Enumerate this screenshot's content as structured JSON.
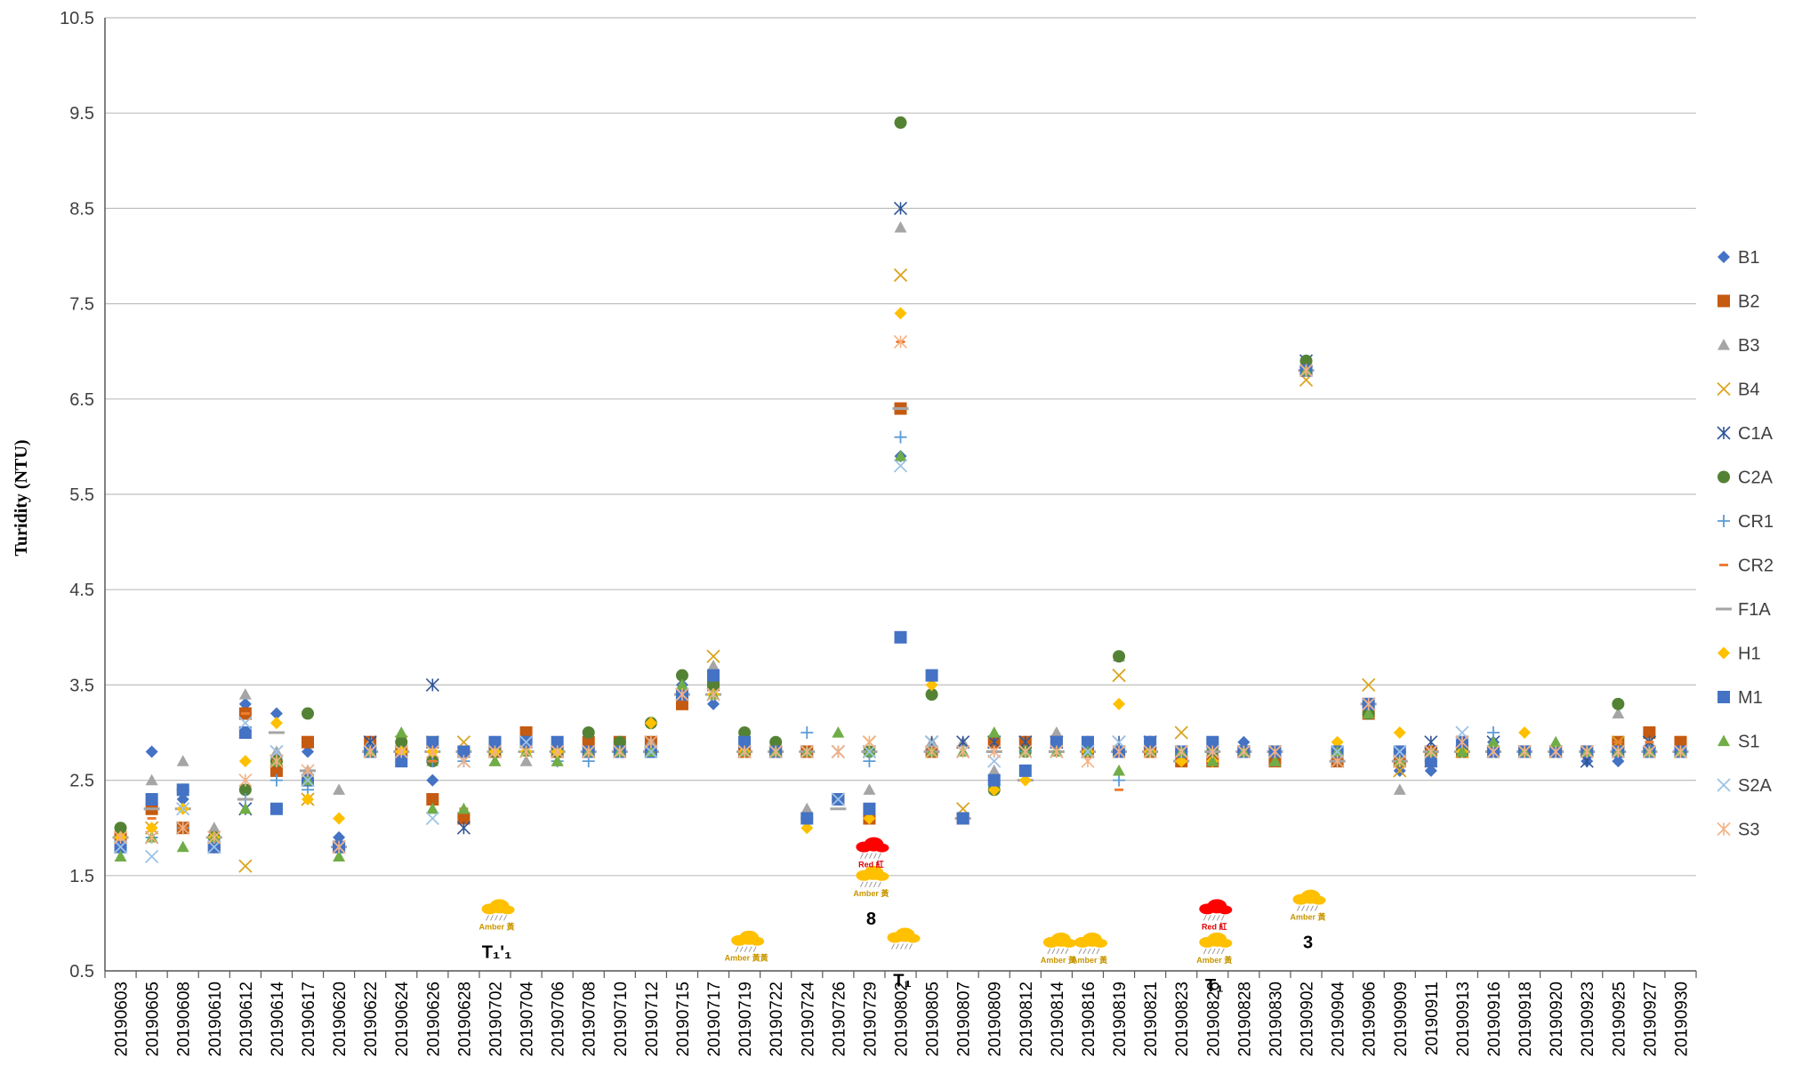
{
  "chart_data": {
    "type": "scatter",
    "title": "",
    "ylabel": "Turidity (NTU)",
    "xlabel": "",
    "ylim": [
      0.5,
      10.5
    ],
    "yticks": [
      "10.5",
      "9.5",
      "8.5",
      "7.5",
      "6.5",
      "5.5",
      "4.5",
      "3.5",
      "2.5",
      "1.5",
      "0.5"
    ],
    "grid": "horizontal",
    "legend_position": "right",
    "categories": [
      "20190603",
      "20190605",
      "20190608",
      "20190610",
      "20190612",
      "20190614",
      "20190617",
      "20190620",
      "20190622",
      "20190624",
      "20190626",
      "20190628",
      "20190702",
      "20190704",
      "20190706",
      "20190708",
      "20190710",
      "20190712",
      "20190715",
      "20190717",
      "20190719",
      "20190722",
      "20190724",
      "20190726",
      "20190729",
      "20190802",
      "20190805",
      "20190807",
      "20190809",
      "20190812",
      "20190814",
      "20190816",
      "20190819",
      "20190821",
      "20190823",
      "20190826",
      "20190828",
      "20190830",
      "20190902",
      "20190904",
      "20190906",
      "20190909",
      "20190911",
      "20190913",
      "20190916",
      "20190918",
      "20190920",
      "20190923",
      "20190925",
      "20190927",
      "20190930"
    ],
    "series": [
      {
        "name": "B1",
        "marker": "diamond",
        "color": "#4472C4",
        "values": [
          1.8,
          2.8,
          2.3,
          1.8,
          3.3,
          3.2,
          2.8,
          1.9,
          2.9,
          2.9,
          2.5,
          2.8,
          2.9,
          2.9,
          2.8,
          2.8,
          2.8,
          2.9,
          3.5,
          3.3,
          2.9,
          2.8,
          2.8,
          2.3,
          2.2,
          5.9,
          2.8,
          2.1,
          2.5,
          2.9,
          2.9,
          2.9,
          2.8,
          2.9,
          2.7,
          2.8,
          2.9,
          2.8,
          6.8,
          2.7,
          3.3,
          2.6,
          2.6,
          2.9,
          2.9,
          2.8,
          2.8,
          2.7,
          2.7,
          2.8,
          2.8
        ]
      },
      {
        "name": "B2",
        "marker": "square",
        "color": "#C55A11",
        "values": [
          1.9,
          2.2,
          2.0,
          1.8,
          3.2,
          2.6,
          2.9,
          1.8,
          2.9,
          2.8,
          2.3,
          2.1,
          2.8,
          3.0,
          2.8,
          2.9,
          2.9,
          2.9,
          3.3,
          3.5,
          2.8,
          2.8,
          2.8,
          2.3,
          2.1,
          6.4,
          2.8,
          2.1,
          2.9,
          2.9,
          2.9,
          2.8,
          2.8,
          2.8,
          2.7,
          2.7,
          2.8,
          2.7,
          6.8,
          2.7,
          3.2,
          2.7,
          2.8,
          2.8,
          2.8,
          2.8,
          2.8,
          2.8,
          2.9,
          3.0,
          2.9
        ]
      },
      {
        "name": "B3",
        "marker": "triangle",
        "color": "#A5A5A5",
        "values": [
          1.9,
          2.5,
          2.7,
          2.0,
          3.4,
          2.8,
          2.6,
          2.4,
          2.9,
          2.9,
          2.7,
          2.8,
          2.7,
          2.7,
          2.7,
          2.8,
          2.8,
          2.9,
          3.5,
          3.7,
          2.8,
          2.9,
          2.2,
          2.3,
          2.4,
          8.3,
          2.9,
          2.9,
          2.6,
          2.8,
          3.0,
          2.8,
          3.8,
          2.9,
          2.8,
          2.8,
          2.8,
          2.7,
          6.8,
          2.8,
          3.3,
          2.4,
          2.8,
          2.9,
          2.8,
          2.8,
          2.8,
          2.8,
          3.2,
          2.9,
          2.8
        ]
      },
      {
        "name": "B4",
        "marker": "x",
        "color": "#DAA520",
        "values": [
          1.9,
          2.0,
          2.0,
          1.9,
          1.6,
          2.7,
          2.3,
          1.8,
          2.8,
          2.9,
          2.9,
          2.9,
          2.8,
          2.9,
          2.8,
          2.8,
          2.8,
          2.8,
          3.4,
          3.8,
          2.8,
          2.8,
          2.8,
          2.3,
          2.9,
          7.8,
          2.9,
          2.2,
          2.9,
          2.9,
          2.9,
          2.8,
          3.6,
          2.9,
          3.0,
          2.8,
          2.8,
          2.8,
          6.7,
          2.7,
          3.5,
          2.6,
          2.7,
          2.8,
          2.8,
          2.8,
          2.8,
          2.8,
          2.9,
          2.9,
          2.8
        ]
      },
      {
        "name": "C1A",
        "marker": "asterisk",
        "color": "#2F5597",
        "values": [
          1.8,
          1.9,
          2.0,
          1.8,
          2.2,
          2.7,
          2.5,
          1.8,
          2.9,
          2.8,
          3.5,
          2.0,
          2.8,
          2.9,
          2.8,
          2.8,
          2.8,
          2.9,
          3.4,
          3.4,
          2.8,
          2.8,
          2.8,
          2.8,
          2.8,
          8.5,
          2.9,
          2.9,
          2.9,
          2.9,
          2.9,
          2.8,
          2.9,
          2.9,
          2.8,
          2.8,
          2.8,
          2.8,
          6.9,
          2.7,
          3.3,
          2.7,
          2.9,
          2.9,
          2.9,
          2.8,
          2.8,
          2.7,
          2.8,
          2.9,
          2.8
        ]
      },
      {
        "name": "C2A",
        "marker": "circle",
        "color": "#548235",
        "values": [
          2.0,
          2.3,
          2.4,
          1.9,
          2.4,
          2.7,
          3.2,
          1.8,
          2.8,
          2.9,
          2.7,
          2.8,
          2.8,
          2.9,
          2.8,
          3.0,
          2.9,
          3.1,
          3.6,
          3.5,
          3.0,
          2.9,
          2.1,
          2.3,
          2.8,
          9.4,
          3.4,
          2.1,
          2.4,
          2.8,
          2.9,
          2.9,
          3.8,
          2.9,
          2.8,
          2.8,
          2.8,
          2.8,
          6.9,
          2.8,
          3.2,
          2.8,
          2.7,
          2.8,
          2.8,
          2.8,
          2.8,
          2.8,
          3.3,
          2.8,
          2.8
        ]
      },
      {
        "name": "CR1",
        "marker": "plus",
        "color": "#5B9BD5",
        "values": [
          1.8,
          1.9,
          2.0,
          1.8,
          2.3,
          2.5,
          2.4,
          1.8,
          2.8,
          2.8,
          2.7,
          2.7,
          2.8,
          2.8,
          2.7,
          2.7,
          2.8,
          2.8,
          3.4,
          3.4,
          2.8,
          2.8,
          3.0,
          2.3,
          2.7,
          6.1,
          2.8,
          2.1,
          2.8,
          2.8,
          2.8,
          2.8,
          2.5,
          2.8,
          2.8,
          2.8,
          2.8,
          2.8,
          6.8,
          2.7,
          3.3,
          2.7,
          2.7,
          2.8,
          3.0,
          2.8,
          2.8,
          2.8,
          2.8,
          2.8,
          2.8
        ]
      },
      {
        "name": "CR2",
        "marker": "dash",
        "color": "#ED7D31",
        "values": [
          1.9,
          2.1,
          2.0,
          1.9,
          3.2,
          2.7,
          2.6,
          1.8,
          2.8,
          2.8,
          2.7,
          2.2,
          2.8,
          2.8,
          2.8,
          2.8,
          2.8,
          2.8,
          3.4,
          3.4,
          2.8,
          2.8,
          2.8,
          2.3,
          2.8,
          7.1,
          2.8,
          2.1,
          2.8,
          2.5,
          2.8,
          2.8,
          2.4,
          2.8,
          2.8,
          2.8,
          2.8,
          2.8,
          6.8,
          2.7,
          3.3,
          2.7,
          2.8,
          2.8,
          2.8,
          2.8,
          2.8,
          2.8,
          2.9,
          2.9,
          2.8
        ]
      },
      {
        "name": "F1A",
        "marker": "longdash",
        "color": "#A5A5A5",
        "values": [
          1.9,
          2.2,
          2.2,
          1.9,
          2.3,
          3.0,
          2.6,
          1.8,
          2.8,
          2.8,
          2.8,
          2.8,
          2.8,
          2.8,
          2.8,
          2.8,
          2.8,
          2.8,
          3.4,
          3.4,
          2.8,
          2.8,
          2.8,
          2.2,
          2.8,
          6.4,
          2.8,
          2.1,
          2.8,
          2.5,
          2.8,
          2.8,
          2.8,
          2.8,
          2.7,
          2.8,
          2.8,
          2.8,
          6.8,
          2.7,
          3.3,
          2.7,
          2.8,
          2.8,
          2.8,
          2.8,
          2.8,
          2.8,
          2.8,
          2.8,
          2.8
        ]
      },
      {
        "name": "H1",
        "marker": "diamond",
        "color": "#FFC000",
        "values": [
          1.9,
          2.0,
          2.2,
          1.9,
          2.7,
          3.1,
          2.3,
          2.1,
          2.8,
          2.8,
          2.8,
          2.8,
          2.8,
          2.8,
          2.8,
          2.8,
          2.8,
          3.1,
          3.4,
          3.4,
          2.8,
          2.8,
          2.0,
          2.3,
          2.1,
          7.4,
          3.5,
          2.1,
          2.4,
          2.5,
          2.9,
          2.8,
          3.3,
          2.8,
          2.7,
          2.7,
          2.8,
          2.8,
          6.8,
          2.9,
          3.3,
          3.0,
          2.7,
          2.8,
          2.8,
          3.0,
          2.8,
          2.8,
          2.8,
          2.8,
          2.8
        ]
      },
      {
        "name": "M1",
        "marker": "square",
        "color": "#4472C4",
        "values": [
          1.8,
          2.3,
          2.4,
          1.8,
          3.0,
          2.2,
          2.5,
          1.8,
          2.8,
          2.7,
          2.9,
          2.8,
          2.9,
          2.9,
          2.9,
          2.8,
          2.8,
          2.8,
          3.4,
          3.6,
          2.9,
          2.8,
          2.1,
          2.3,
          2.2,
          4.0,
          3.6,
          2.1,
          2.5,
          2.6,
          2.9,
          2.9,
          2.8,
          2.9,
          2.8,
          2.9,
          2.8,
          2.8,
          6.8,
          2.8,
          3.3,
          2.8,
          2.7,
          2.9,
          2.8,
          2.8,
          2.8,
          2.8,
          2.8,
          2.8,
          2.8
        ]
      },
      {
        "name": "S1",
        "marker": "triangle",
        "color": "#70AD47",
        "values": [
          1.7,
          1.9,
          1.8,
          1.9,
          2.2,
          2.7,
          2.5,
          1.7,
          2.8,
          3.0,
          2.2,
          2.2,
          2.7,
          2.8,
          2.7,
          2.8,
          2.8,
          2.8,
          3.5,
          3.4,
          2.8,
          2.8,
          2.8,
          3.0,
          2.8,
          5.9,
          2.8,
          2.8,
          3.0,
          2.8,
          2.8,
          2.8,
          2.6,
          2.8,
          2.8,
          2.7,
          2.8,
          2.7,
          6.8,
          2.8,
          3.2,
          2.7,
          2.8,
          2.8,
          2.9,
          2.8,
          2.9,
          2.8,
          2.8,
          2.8,
          2.8
        ]
      },
      {
        "name": "S2A",
        "marker": "x",
        "color": "#9DC3E6",
        "values": [
          1.8,
          1.7,
          2.2,
          1.8,
          3.1,
          2.8,
          2.5,
          1.8,
          2.8,
          2.8,
          2.1,
          2.7,
          2.8,
          2.9,
          2.8,
          2.8,
          2.8,
          2.8,
          3.4,
          3.4,
          2.8,
          2.8,
          2.8,
          2.3,
          2.8,
          5.8,
          2.9,
          2.8,
          2.7,
          2.8,
          2.8,
          2.8,
          2.9,
          2.8,
          2.8,
          2.8,
          2.8,
          2.8,
          6.8,
          2.8,
          3.3,
          2.8,
          2.8,
          3.0,
          2.8,
          2.8,
          2.8,
          2.8,
          2.8,
          2.8,
          2.8
        ]
      },
      {
        "name": "S3",
        "marker": "asterisk",
        "color": "#F4B183",
        "values": [
          1.9,
          1.9,
          2.0,
          1.9,
          2.5,
          2.7,
          2.6,
          1.8,
          2.8,
          2.8,
          2.8,
          2.7,
          2.8,
          2.8,
          2.8,
          2.8,
          2.8,
          2.9,
          3.4,
          3.4,
          2.8,
          2.8,
          2.8,
          2.8,
          2.9,
          7.1,
          2.8,
          2.8,
          2.8,
          2.8,
          2.8,
          2.7,
          2.8,
          2.8,
          2.8,
          2.8,
          2.8,
          2.8,
          6.8,
          2.7,
          3.3,
          2.7,
          2.8,
          2.9,
          2.8,
          2.8,
          2.8,
          2.8,
          2.8,
          2.8,
          2.8
        ]
      }
    ],
    "annotations": [
      {
        "category": "20190702",
        "y": 1.15,
        "icon": "rain-cloud-icon",
        "color": "#FFC000",
        "text": "Amber 黃",
        "symbol": "T₁'₁"
      },
      {
        "category": "20190719",
        "y": 0.82,
        "icon": "rain-cloud-icon",
        "color": "#FFC000",
        "text": "Amber 黃黃",
        "symbol": ""
      },
      {
        "category": "20190729",
        "y": 1.5,
        "icon": "rain-cloud-icon",
        "color": "#FFC000",
        "text": "Amber 黃",
        "symbol": "8"
      },
      {
        "category": "20190729",
        "y": 1.8,
        "icon": "rain-cloud-icon",
        "color": "#FF0000",
        "text": "Red 紅",
        "symbol": ""
      },
      {
        "category": "20190802",
        "y": 0.85,
        "icon": "rain-cloud-icon",
        "color": "#FFC000",
        "text": "",
        "symbol": "T₁"
      },
      {
        "category": "20190814",
        "y": 0.8,
        "icon": "rain-cloud-icon",
        "color": "#FFC000",
        "text": "Amber 黃",
        "symbol": ""
      },
      {
        "category": "20190816",
        "y": 0.8,
        "icon": "rain-cloud-icon",
        "color": "#FFC000",
        "text": "Amber 黃",
        "symbol": ""
      },
      {
        "category": "20190826",
        "y": 1.15,
        "icon": "rain-cloud-icon",
        "color": "#FF0000",
        "text": "Red 紅",
        "symbol": ""
      },
      {
        "category": "20190826",
        "y": 0.8,
        "icon": "rain-cloud-icon",
        "color": "#FFC000",
        "text": "Amber 黃",
        "symbol": "T₁"
      },
      {
        "category": "20190902",
        "y": 1.25,
        "icon": "rain-cloud-icon",
        "color": "#FFC000",
        "text": "Amber 黃",
        "symbol": "3"
      }
    ]
  }
}
